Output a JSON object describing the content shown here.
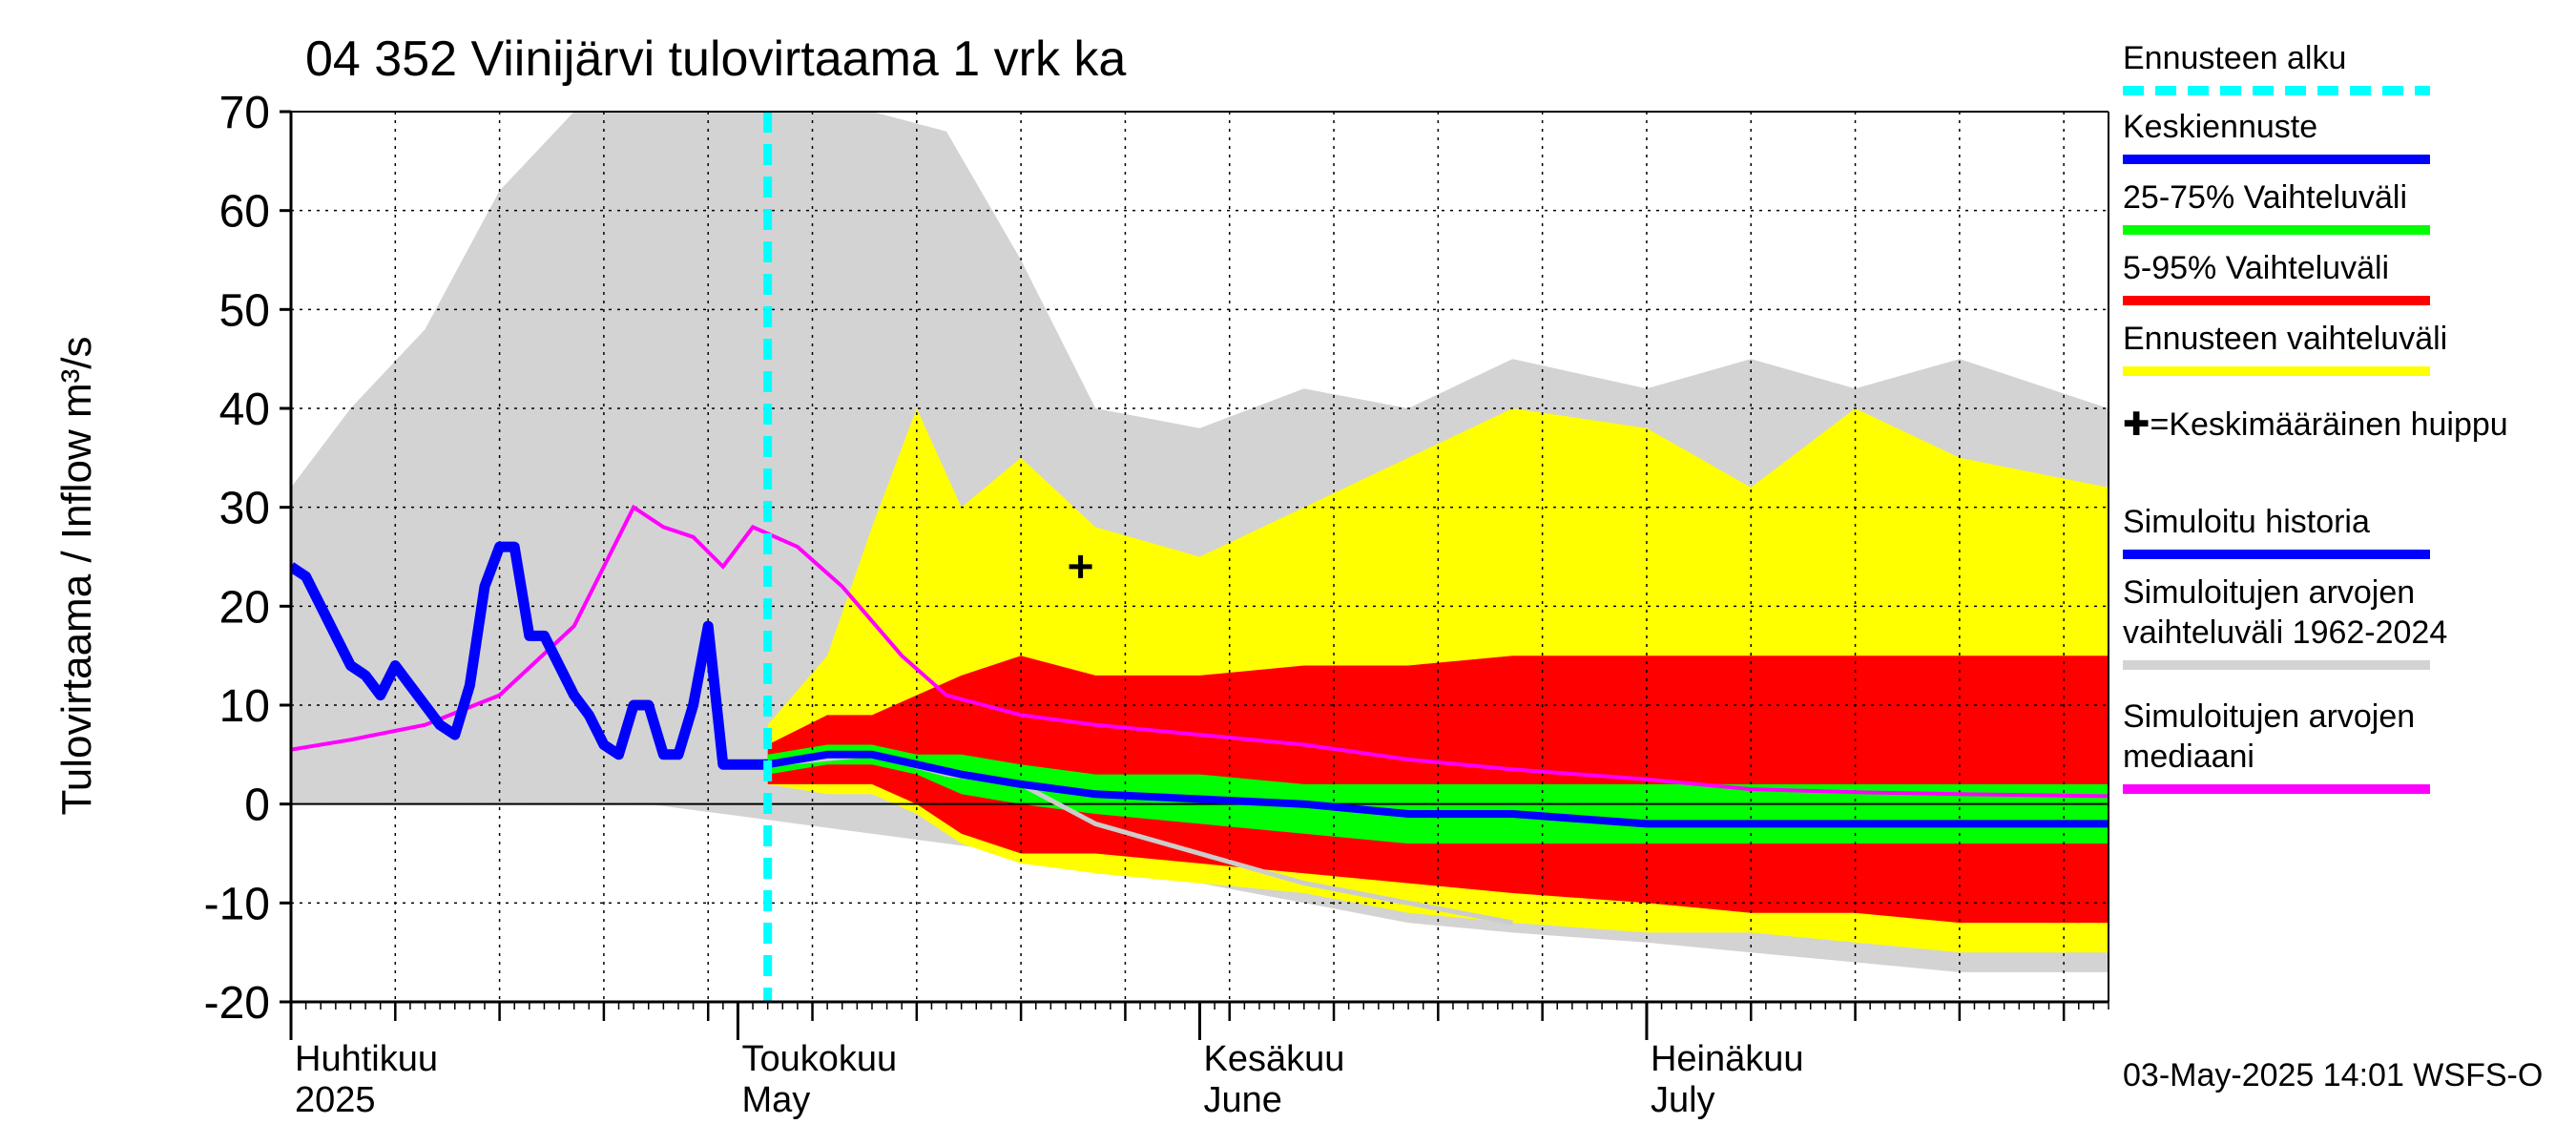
{
  "chart_data": {
    "type": "area",
    "title": "04 352 Viinijärvi tulovirtaama 1 vrk ka",
    "ylabel": "Tulovirtaama / Inflow    m³/s",
    "ylim": [
      -20,
      70
    ],
    "yticks": [
      -20,
      -10,
      0,
      10,
      20,
      30,
      40,
      50,
      60,
      70
    ],
    "xlim": [
      "2025-04-01",
      "2025-08-01"
    ],
    "month_labels": [
      {
        "fi": "Huhtikuu",
        "en": "2025",
        "date": "2025-04-01"
      },
      {
        "fi": "Toukokuu",
        "en": "May",
        "date": "2025-05-01"
      },
      {
        "fi": "Kesäkuu",
        "en": "June",
        "date": "2025-06-01"
      },
      {
        "fi": "Heinäkuu",
        "en": "July",
        "date": "2025-07-01"
      }
    ],
    "forecast_start": "2025-05-03",
    "mean_peak": {
      "date": "2025-05-24",
      "value": 24
    },
    "simulated_history": {
      "dates": [
        "2025-04-01",
        "2025-04-02",
        "2025-04-03",
        "2025-04-04",
        "2025-04-05",
        "2025-04-06",
        "2025-04-07",
        "2025-04-08",
        "2025-04-09",
        "2025-04-10",
        "2025-04-11",
        "2025-04-12",
        "2025-04-13",
        "2025-04-14",
        "2025-04-15",
        "2025-04-16",
        "2025-04-17",
        "2025-04-18",
        "2025-04-19",
        "2025-04-20",
        "2025-04-21",
        "2025-04-22",
        "2025-04-23",
        "2025-04-24",
        "2025-04-25",
        "2025-04-26",
        "2025-04-27",
        "2025-04-28",
        "2025-04-29",
        "2025-04-30",
        "2025-05-01",
        "2025-05-02",
        "2025-05-03"
      ],
      "values": [
        24,
        23,
        20,
        17,
        14,
        13,
        11,
        14,
        12,
        10,
        8,
        7,
        12,
        22,
        26,
        26,
        17,
        17,
        14,
        11,
        9,
        6,
        5,
        10,
        10,
        5,
        5,
        10,
        18,
        4,
        4,
        4,
        4
      ]
    },
    "median_1962_2024": {
      "dates": [
        "2025-04-01",
        "2025-04-05",
        "2025-04-10",
        "2025-04-15",
        "2025-04-20",
        "2025-04-24",
        "2025-04-26",
        "2025-04-28",
        "2025-04-30",
        "2025-05-02",
        "2025-05-05",
        "2025-05-08",
        "2025-05-12",
        "2025-05-15",
        "2025-05-20",
        "2025-05-25",
        "2025-06-01",
        "2025-06-08",
        "2025-06-15",
        "2025-06-22",
        "2025-07-01",
        "2025-07-08",
        "2025-07-15",
        "2025-07-22",
        "2025-08-01"
      ],
      "values": [
        5.5,
        6.5,
        8,
        11,
        18,
        30,
        28,
        27,
        24,
        28,
        26,
        22,
        15,
        11,
        9,
        8,
        7,
        6,
        4.5,
        3.5,
        2.5,
        1.5,
        1.2,
        1,
        0.8
      ]
    },
    "forecast_median": {
      "dates": [
        "2025-05-03",
        "2025-05-07",
        "2025-05-10",
        "2025-05-13",
        "2025-05-16",
        "2025-05-20",
        "2025-05-25",
        "2025-06-01",
        "2025-06-08",
        "2025-06-15",
        "2025-06-22",
        "2025-07-01",
        "2025-07-08",
        "2025-07-15",
        "2025-07-22",
        "2025-08-01"
      ],
      "values": [
        4,
        5,
        5,
        4,
        3,
        2,
        1,
        0.5,
        0,
        -1,
        -1,
        -2,
        -2,
        -2,
        -2,
        -2
      ]
    },
    "forecast_dates": [
      "2025-05-03",
      "2025-05-07",
      "2025-05-10",
      "2025-05-13",
      "2025-05-16",
      "2025-05-20",
      "2025-05-25",
      "2025-06-01",
      "2025-06-08",
      "2025-06-15",
      "2025-06-22",
      "2025-07-01",
      "2025-07-08",
      "2025-07-15",
      "2025-07-22",
      "2025-08-01"
    ],
    "band_25_75": {
      "low": [
        3,
        4,
        4,
        3,
        1,
        0,
        -1,
        -2,
        -3,
        -4,
        -4,
        -4,
        -4,
        -4,
        -4,
        -4
      ],
      "high": [
        5,
        6,
        6,
        5,
        5,
        4,
        3,
        3,
        2,
        2,
        2,
        2,
        2,
        2,
        2,
        2
      ]
    },
    "band_5_95": {
      "low": [
        2,
        2,
        2,
        0,
        -3,
        -5,
        -5,
        -6,
        -7,
        -8,
        -9,
        -10,
        -11,
        -11,
        -12,
        -12
      ],
      "high": [
        6,
        9,
        9,
        11,
        13,
        15,
        13,
        13,
        14,
        14,
        15,
        15,
        15,
        15,
        15,
        15
      ]
    },
    "band_forecast": {
      "low": [
        2,
        1,
        1,
        -1,
        -4,
        -6,
        -7,
        -8,
        -9,
        -11,
        -12,
        -13,
        -13,
        -14,
        -15,
        -15
      ],
      "high": [
        8,
        15,
        28,
        40,
        30,
        35,
        28,
        25,
        30,
        35,
        40,
        38,
        32,
        40,
        35,
        32
      ]
    },
    "sim_range_1962_2024": {
      "dates": [
        "2025-04-01",
        "2025-04-05",
        "2025-04-10",
        "2025-04-15",
        "2025-04-20",
        "2025-04-25",
        "2025-04-30",
        "2025-05-05",
        "2025-05-10",
        "2025-05-15",
        "2025-05-20",
        "2025-05-25",
        "2025-06-01",
        "2025-06-08",
        "2025-06-15",
        "2025-06-22",
        "2025-07-01",
        "2025-07-08",
        "2025-07-15",
        "2025-07-22",
        "2025-08-01"
      ],
      "low": [
        0,
        0,
        0,
        0,
        0,
        0,
        -1,
        -2,
        -3,
        -4,
        -5,
        -7,
        -8,
        -10,
        -12,
        -13,
        -14,
        -15,
        -16,
        -17,
        -17
      ],
      "high": [
        32,
        40,
        48,
        62,
        70,
        70,
        70,
        70,
        70,
        68,
        55,
        40,
        38,
        42,
        40,
        45,
        42,
        45,
        42,
        45,
        40
      ]
    },
    "observed_sim_gray": {
      "dates": [
        "2025-05-03",
        "2025-05-10",
        "2025-05-15",
        "2025-05-20",
        "2025-05-25",
        "2025-06-01",
        "2025-06-08",
        "2025-06-15",
        "2025-06-22"
      ],
      "values": [
        4,
        5,
        3,
        2,
        -2,
        -5,
        -8,
        -10,
        -12
      ]
    }
  },
  "legend": {
    "items": [
      {
        "label": "Ennusteen alku",
        "color": "#00ffff",
        "style": "dash"
      },
      {
        "label": "Keskiennuste",
        "color": "#0000ff",
        "style": "line"
      },
      {
        "label": "25-75% Vaihteluväli",
        "color": "#00ff00",
        "style": "line"
      },
      {
        "label": "5-95% Vaihteluväli",
        "color": "#ff0000",
        "style": "line"
      },
      {
        "label": "Ennusteen vaihteluväli",
        "color": "#ffff00",
        "style": "line"
      },
      {
        "label": "✚=Keskimääräinen huippu",
        "color": "",
        "style": "none"
      },
      {
        "label": "Simuloitu historia",
        "color": "#0000ff",
        "style": "line"
      },
      {
        "label": "Simuloitujen arvojen vaihteluväli 1962-2024",
        "color": "#d3d3d3",
        "style": "line"
      },
      {
        "label": "Simuloitujen arvojen mediaani",
        "color": "#ff00ff",
        "style": "line"
      }
    ]
  },
  "footer": "03-May-2025 14:01 WSFS-O",
  "colors": {
    "forecast_band": "#ffff00",
    "band_5_95": "#ff0000",
    "band_25_75": "#00ff00",
    "forecast_median": "#0000ff",
    "median_hist": "#ff00ff",
    "sim_range": "#d3d3d3",
    "forecast_start": "#00ffff"
  }
}
